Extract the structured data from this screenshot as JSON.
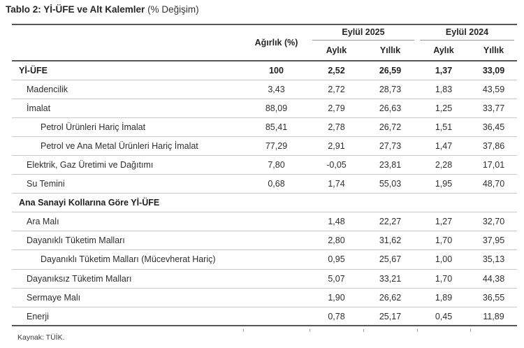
{
  "title": {
    "main": "Tablo 2: Yİ-ÜFE ve Alt Kalemler",
    "suffix": " (% Değişim)"
  },
  "table": {
    "weight_header": "Ağırlık (%)",
    "groups": [
      {
        "label": "Eylül 2025"
      },
      {
        "label": "Eylül 2024"
      }
    ],
    "subcols": [
      "Aylık",
      "Yıllık",
      "Aylık",
      "Yıllık"
    ],
    "rows": [
      {
        "label": "Yİ-ÜFE",
        "indent": 0,
        "bold": true,
        "weight": "100",
        "values": [
          "2,52",
          "26,59",
          "1,37",
          "33,09"
        ]
      },
      {
        "label": "Madencilik",
        "indent": 1,
        "bold": false,
        "weight": "3,43",
        "values": [
          "2,72",
          "28,73",
          "1,83",
          "43,59"
        ]
      },
      {
        "label": "İmalat",
        "indent": 1,
        "bold": false,
        "weight": "88,09",
        "values": [
          "2,79",
          "26,63",
          "1,25",
          "33,77"
        ]
      },
      {
        "label": "Petrol Ürünleri Hariç İmalat",
        "indent": 2,
        "bold": false,
        "weight": "85,41",
        "values": [
          "2,78",
          "26,72",
          "1,51",
          "36,45"
        ]
      },
      {
        "label": "Petrol ve Ana Metal Ürünleri Hariç İmalat",
        "indent": 2,
        "bold": false,
        "weight": "77,29",
        "values": [
          "2,91",
          "27,73",
          "1,47",
          "37,86"
        ]
      },
      {
        "label": "Elektrik, Gaz Üretimi ve Dağıtımı",
        "indent": 1,
        "bold": false,
        "weight": "7,80",
        "values": [
          "-0,05",
          "23,81",
          "2,28",
          "17,01"
        ]
      },
      {
        "label": "Su Temini",
        "indent": 1,
        "bold": false,
        "weight": "0,68",
        "values": [
          "1,74",
          "55,03",
          "1,95",
          "48,70"
        ]
      },
      {
        "label": "Ana Sanayi Kollarına Göre Yİ-ÜFE",
        "indent": 0,
        "bold": true,
        "weight": "",
        "values": [
          "",
          "",
          "",
          ""
        ]
      },
      {
        "label": "Ara Malı",
        "indent": 1,
        "bold": false,
        "weight": "",
        "values": [
          "1,48",
          "22,27",
          "1,27",
          "32,70"
        ]
      },
      {
        "label": "Dayanıklı Tüketim Malları",
        "indent": 1,
        "bold": false,
        "weight": "",
        "values": [
          "2,80",
          "31,62",
          "1,70",
          "37,95"
        ]
      },
      {
        "label": "Dayanıklı Tüketim Malları (Mücevherat Hariç)",
        "indent": 2,
        "bold": false,
        "weight": "",
        "values": [
          "0,95",
          "25,67",
          "1,00",
          "35,13"
        ]
      },
      {
        "label": "Dayanıksız Tüketim Malları",
        "indent": 1,
        "bold": false,
        "weight": "",
        "values": [
          "5,07",
          "33,21",
          "1,70",
          "44,38"
        ]
      },
      {
        "label": "Sermaye Malı",
        "indent": 1,
        "bold": false,
        "weight": "",
        "values": [
          "1,90",
          "26,62",
          "1,89",
          "36,55"
        ]
      },
      {
        "label": "Enerji",
        "indent": 1,
        "bold": false,
        "weight": "",
        "values": [
          "0,78",
          "25,17",
          "0,45",
          "11,89"
        ]
      }
    ]
  },
  "footer": {
    "source": "Kaynak: TÜİK."
  },
  "colors": {
    "border_dark": "#565656",
    "row_separator": "#c8c8c8",
    "group_underline": "#949494",
    "text": "#2e2e2e",
    "background": "#ffffff"
  }
}
